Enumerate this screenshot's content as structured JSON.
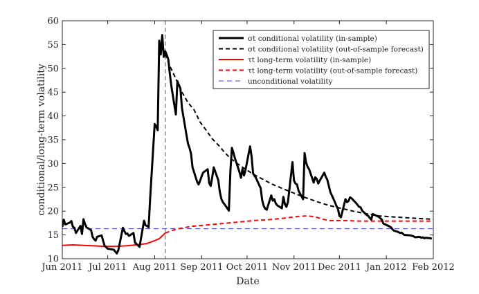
{
  "chart_data": {
    "type": "line",
    "title": "",
    "xlabel": "Date",
    "ylabel": "conditional/long-term volatility",
    "ylim": [
      10,
      60
    ],
    "yticks": [
      10,
      15,
      20,
      25,
      30,
      35,
      40,
      45,
      50,
      55,
      60
    ],
    "xticks": [
      "Jun 2011",
      "Jul 2011",
      "Aug 2011",
      "Sep 2011",
      "Oct 2011",
      "Nov 2011",
      "Dec 2011",
      "Jan 2012",
      "Feb 2012"
    ],
    "xlim": [
      "2011-06-01",
      "2012-02-01"
    ],
    "grid": false,
    "legend_position": "top-right",
    "vertical_marker": {
      "date": "2011-08-08",
      "color": "#555555",
      "style": "dashed"
    },
    "series": [
      {
        "name": "σt conditional volatility (in-sample)",
        "color": "#000000",
        "dash": "solid",
        "width": 3,
        "points": [
          [
            "2011-06-01",
            16.7
          ],
          [
            "2011-06-02",
            18.2
          ],
          [
            "2011-06-03",
            17.2
          ],
          [
            "2011-06-06",
            17.6
          ],
          [
            "2011-06-07",
            17.9
          ],
          [
            "2011-06-08",
            16.7
          ],
          [
            "2011-06-09",
            16.5
          ],
          [
            "2011-06-10",
            15.4
          ],
          [
            "2011-06-13",
            16.9
          ],
          [
            "2011-06-14",
            15.2
          ],
          [
            "2011-06-15",
            18.3
          ],
          [
            "2011-06-16",
            17.3
          ],
          [
            "2011-06-17",
            16.6
          ],
          [
            "2011-06-20",
            16.0
          ],
          [
            "2011-06-21",
            14.6
          ],
          [
            "2011-06-22",
            14.1
          ],
          [
            "2011-06-23",
            13.8
          ],
          [
            "2011-06-24",
            14.6
          ],
          [
            "2011-06-27",
            14.9
          ],
          [
            "2011-06-28",
            13.7
          ],
          [
            "2011-06-29",
            12.7
          ],
          [
            "2011-06-30",
            12.4
          ],
          [
            "2011-07-01",
            12.1
          ],
          [
            "2011-07-05",
            11.9
          ],
          [
            "2011-07-06",
            11.5
          ],
          [
            "2011-07-07",
            11.1
          ],
          [
            "2011-07-08",
            11.8
          ],
          [
            "2011-07-11",
            16.5
          ],
          [
            "2011-07-12",
            15.8
          ],
          [
            "2011-07-13",
            15.2
          ],
          [
            "2011-07-14",
            15.3
          ],
          [
            "2011-07-15",
            14.8
          ],
          [
            "2011-07-18",
            15.4
          ],
          [
            "2011-07-19",
            13.4
          ],
          [
            "2011-07-20",
            13.1
          ],
          [
            "2011-07-21",
            12.8
          ],
          [
            "2011-07-22",
            12.5
          ],
          [
            "2011-07-25",
            18.0
          ],
          [
            "2011-07-26",
            17.0
          ],
          [
            "2011-07-27",
            16.9
          ],
          [
            "2011-07-28",
            16.6
          ],
          [
            "2011-07-29",
            22.6
          ],
          [
            "2011-08-01",
            38.3
          ],
          [
            "2011-08-02",
            37.8
          ],
          [
            "2011-08-03",
            37.0
          ],
          [
            "2011-08-04",
            55.8
          ],
          [
            "2011-08-05",
            52.9
          ],
          [
            "2011-08-06",
            57.0
          ],
          [
            "2011-08-07",
            52.4
          ],
          [
            "2011-08-08",
            53.6
          ],
          [
            "2011-08-09",
            52.8
          ],
          [
            "2011-08-10",
            51.9
          ],
          [
            "2011-08-11",
            48.9
          ],
          [
            "2011-08-12",
            46.3
          ],
          [
            "2011-08-15",
            40.3
          ],
          [
            "2011-08-16",
            47.3
          ],
          [
            "2011-08-17",
            46.5
          ],
          [
            "2011-08-18",
            45.8
          ],
          [
            "2011-08-19",
            41.7
          ],
          [
            "2011-08-22",
            36.0
          ],
          [
            "2011-08-23",
            34.2
          ],
          [
            "2011-08-24",
            33.3
          ],
          [
            "2011-08-25",
            32.1
          ],
          [
            "2011-08-26",
            29.2
          ],
          [
            "2011-08-29",
            26.2
          ],
          [
            "2011-08-30",
            25.6
          ],
          [
            "2011-08-31",
            26.4
          ],
          [
            "2011-09-01",
            27.3
          ],
          [
            "2011-09-02",
            28.1
          ],
          [
            "2011-09-05",
            28.8
          ],
          [
            "2011-09-06",
            25.9
          ],
          [
            "2011-09-07",
            25.3
          ],
          [
            "2011-09-08",
            27.1
          ],
          [
            "2011-09-09",
            29.2
          ],
          [
            "2011-09-12",
            26.5
          ],
          [
            "2011-09-13",
            24.1
          ],
          [
            "2011-09-14",
            22.6
          ],
          [
            "2011-09-15",
            21.9
          ],
          [
            "2011-09-16",
            21.5
          ],
          [
            "2011-09-19",
            20.1
          ],
          [
            "2011-09-20",
            28.4
          ],
          [
            "2011-09-21",
            33.3
          ],
          [
            "2011-09-22",
            32.3
          ],
          [
            "2011-09-23",
            31.1
          ],
          [
            "2011-09-26",
            28.2
          ],
          [
            "2011-09-27",
            27.0
          ],
          [
            "2011-09-28",
            28.9
          ],
          [
            "2011-09-29",
            27.5
          ],
          [
            "2011-09-30",
            28.7
          ],
          [
            "2011-10-03",
            33.6
          ],
          [
            "2011-10-04",
            31.5
          ],
          [
            "2011-10-05",
            27.9
          ],
          [
            "2011-10-06",
            27.4
          ],
          [
            "2011-10-07",
            26.9
          ],
          [
            "2011-10-10",
            24.8
          ],
          [
            "2011-10-11",
            22.3
          ],
          [
            "2011-10-12",
            21.1
          ],
          [
            "2011-10-13",
            20.5
          ],
          [
            "2011-10-14",
            20.3
          ],
          [
            "2011-10-17",
            23.3
          ],
          [
            "2011-10-18",
            22.2
          ],
          [
            "2011-10-19",
            22.5
          ],
          [
            "2011-10-20",
            21.6
          ],
          [
            "2011-10-21",
            21.2
          ],
          [
            "2011-10-24",
            20.6
          ],
          [
            "2011-10-25",
            23.0
          ],
          [
            "2011-10-26",
            21.5
          ],
          [
            "2011-10-27",
            20.9
          ],
          [
            "2011-10-28",
            21.9
          ],
          [
            "2011-10-31",
            30.3
          ],
          [
            "2011-11-01",
            26.4
          ],
          [
            "2011-11-02",
            25.8
          ],
          [
            "2011-11-03",
            25.6
          ],
          [
            "2011-11-04",
            24.3
          ],
          [
            "2011-11-07",
            22.5
          ],
          [
            "2011-11-08",
            32.2
          ],
          [
            "2011-11-09",
            30.2
          ],
          [
            "2011-11-10",
            29.3
          ],
          [
            "2011-11-11",
            28.8
          ],
          [
            "2011-11-14",
            26.0
          ],
          [
            "2011-11-15",
            27.1
          ],
          [
            "2011-11-16",
            26.8
          ],
          [
            "2011-11-17",
            25.8
          ],
          [
            "2011-11-18",
            26.4
          ],
          [
            "2011-11-21",
            28.1
          ],
          [
            "2011-11-22",
            27.2
          ],
          [
            "2011-11-23",
            26.6
          ],
          [
            "2011-11-25",
            24.0
          ],
          [
            "2011-11-28",
            21.9
          ],
          [
            "2011-11-29",
            21.1
          ],
          [
            "2011-11-30",
            20.5
          ],
          [
            "2011-12-01",
            19.0
          ],
          [
            "2011-12-02",
            18.7
          ],
          [
            "2011-12-05",
            22.5
          ],
          [
            "2011-12-06",
            21.9
          ],
          [
            "2011-12-07",
            22.1
          ],
          [
            "2011-12-08",
            22.9
          ],
          [
            "2011-12-09",
            22.7
          ],
          [
            "2011-12-12",
            21.7
          ],
          [
            "2011-12-13",
            21.3
          ],
          [
            "2011-12-14",
            20.9
          ],
          [
            "2011-12-15",
            20.8
          ],
          [
            "2011-12-16",
            20.1
          ],
          [
            "2011-12-19",
            19.2
          ],
          [
            "2011-12-20",
            19.0
          ],
          [
            "2011-12-21",
            18.6
          ],
          [
            "2011-12-22",
            18.2
          ],
          [
            "2011-12-23",
            19.4
          ],
          [
            "2011-12-27",
            18.8
          ],
          [
            "2011-12-28",
            18.5
          ],
          [
            "2011-12-29",
            18.2
          ],
          [
            "2011-12-30",
            17.4
          ],
          [
            "2012-01-03",
            16.8
          ],
          [
            "2012-01-04",
            16.6
          ],
          [
            "2012-01-05",
            16.2
          ],
          [
            "2012-01-06",
            15.9
          ],
          [
            "2012-01-09",
            15.6
          ],
          [
            "2012-01-10",
            15.4
          ],
          [
            "2012-01-11",
            15.5
          ],
          [
            "2012-01-12",
            15.2
          ],
          [
            "2012-01-13",
            15.0
          ],
          [
            "2012-01-17",
            14.9
          ],
          [
            "2012-01-18",
            14.8
          ],
          [
            "2012-01-19",
            14.7
          ],
          [
            "2012-01-20",
            14.5
          ],
          [
            "2012-01-23",
            14.6
          ],
          [
            "2012-01-24",
            14.4
          ],
          [
            "2012-01-25",
            14.5
          ],
          [
            "2012-01-26",
            14.3
          ],
          [
            "2012-01-27",
            14.4
          ],
          [
            "2012-01-30",
            14.3
          ],
          [
            "2012-01-31",
            14.2
          ]
        ]
      },
      {
        "name": "σt conditional volatility (out-of-sample forecast)",
        "color": "#000000",
        "dash": "6,4",
        "width": 2,
        "points": [
          [
            "2011-08-08",
            53.0
          ],
          [
            "2011-08-11",
            50.5
          ],
          [
            "2011-08-15",
            47.8
          ],
          [
            "2011-08-19",
            45.0
          ],
          [
            "2011-08-23",
            42.8
          ],
          [
            "2011-08-27",
            41.3
          ],
          [
            "2011-08-31",
            38.7
          ],
          [
            "2011-09-04",
            37.0
          ],
          [
            "2011-09-08",
            35.2
          ],
          [
            "2011-09-12",
            33.9
          ],
          [
            "2011-09-16",
            32.4
          ],
          [
            "2011-09-20",
            31.1
          ],
          [
            "2011-09-25",
            29.9
          ],
          [
            "2011-09-30",
            28.8
          ],
          [
            "2011-10-06",
            27.6
          ],
          [
            "2011-10-12",
            26.6
          ],
          [
            "2011-10-18",
            25.6
          ],
          [
            "2011-10-24",
            24.8
          ],
          [
            "2011-10-31",
            23.9
          ],
          [
            "2011-11-08",
            22.9
          ],
          [
            "2011-11-16",
            22.0
          ],
          [
            "2011-11-24",
            21.2
          ],
          [
            "2011-12-02",
            20.6
          ],
          [
            "2011-12-10",
            20.0
          ],
          [
            "2011-12-18",
            19.5
          ],
          [
            "2011-12-27",
            19.0
          ],
          [
            "2012-01-05",
            18.8
          ],
          [
            "2012-01-15",
            18.6
          ],
          [
            "2012-01-25",
            18.4
          ],
          [
            "2012-02-01",
            18.3
          ]
        ]
      },
      {
        "name": "τt long-term volatility (in-sample)",
        "color": "#ff0000",
        "dash": "solid",
        "width": 2,
        "points": [
          [
            "2011-06-01",
            12.8
          ],
          [
            "2011-06-08",
            12.9
          ],
          [
            "2011-06-15",
            12.8
          ],
          [
            "2011-06-22",
            12.7
          ],
          [
            "2011-06-29",
            12.6
          ],
          [
            "2011-07-06",
            12.6
          ],
          [
            "2011-07-13",
            12.7
          ],
          [
            "2011-07-20",
            12.9
          ],
          [
            "2011-07-27",
            13.2
          ],
          [
            "2011-08-01",
            13.8
          ],
          [
            "2011-08-04",
            14.2
          ],
          [
            "2011-08-08",
            15.4
          ]
        ]
      },
      {
        "name": "τt long-term volatility (out-of-sample forecast)",
        "color": "#ff0000",
        "dash": "6,4",
        "width": 2,
        "points": [
          [
            "2011-08-08",
            15.4
          ],
          [
            "2011-08-15",
            16.2
          ],
          [
            "2011-08-25",
            16.8
          ],
          [
            "2011-09-05",
            17.1
          ],
          [
            "2011-09-15",
            17.4
          ],
          [
            "2011-09-25",
            17.7
          ],
          [
            "2011-10-05",
            18.0
          ],
          [
            "2011-10-15",
            18.2
          ],
          [
            "2011-10-25",
            18.5
          ],
          [
            "2011-11-04",
            18.9
          ],
          [
            "2011-11-10",
            19.0
          ],
          [
            "2011-11-15",
            18.8
          ],
          [
            "2011-11-20",
            18.3
          ],
          [
            "2011-11-25",
            18.0
          ],
          [
            "2011-12-05",
            18.0
          ],
          [
            "2011-12-15",
            17.9
          ],
          [
            "2011-12-25",
            17.9
          ],
          [
            "2012-01-05",
            17.9
          ],
          [
            "2012-01-15",
            17.9
          ],
          [
            "2012-02-01",
            17.9
          ]
        ]
      },
      {
        "name": "unconditional volatility",
        "color": "#3b3bd6",
        "dash": "7,5",
        "width": 1,
        "points": [
          [
            "2011-06-01",
            16.3
          ],
          [
            "2012-02-01",
            16.3
          ]
        ]
      }
    ]
  }
}
